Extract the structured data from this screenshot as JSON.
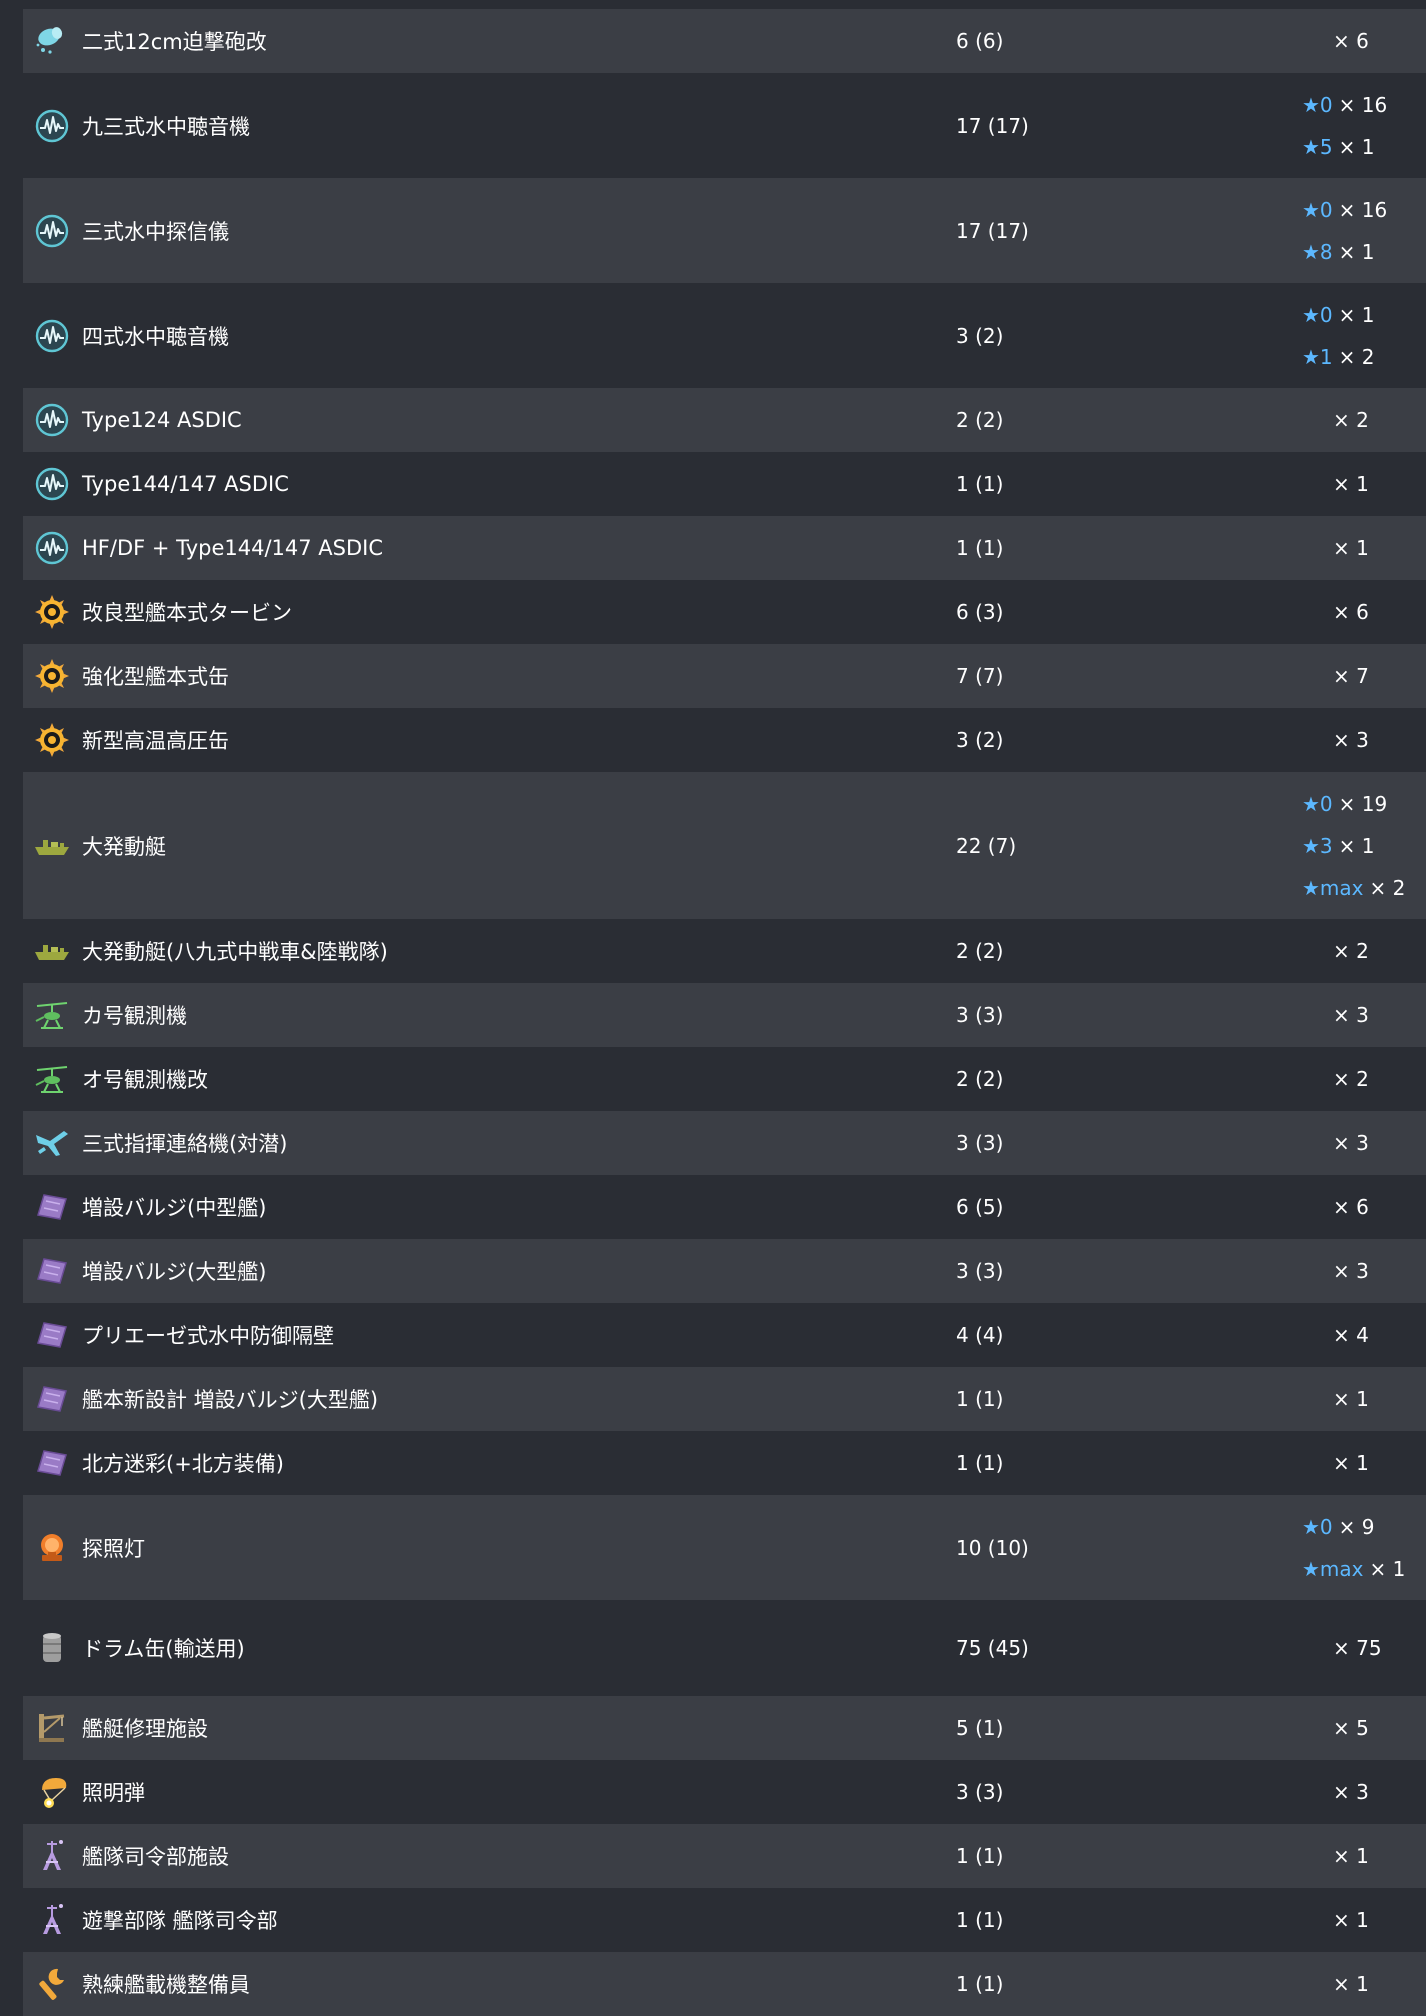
{
  "colors": {
    "row_odd": "#3b3e45",
    "row_even": "#2a2d34",
    "star": "#5cb8ff",
    "text": "#ffffff"
  },
  "rows": [
    {
      "icon": "mortar-icon",
      "name": "二式12cm迫撃砲改",
      "count": "6 (6)",
      "stars": [
        {
          "level": "",
          "count": "× 6"
        }
      ]
    },
    {
      "icon": "sonar-icon",
      "name": "九三式水中聴音機",
      "count": "17 (17)",
      "stars": [
        {
          "level": "★0",
          "count": "× 16"
        },
        {
          "level": "★5",
          "count": "× 1"
        }
      ]
    },
    {
      "icon": "sonar-icon",
      "name": "三式水中探信儀",
      "count": "17 (17)",
      "stars": [
        {
          "level": "★0",
          "count": "× 16"
        },
        {
          "level": "★8",
          "count": "× 1"
        }
      ]
    },
    {
      "icon": "sonar-icon",
      "name": "四式水中聴音機",
      "count": "3 (2)",
      "stars": [
        {
          "level": "★0",
          "count": "× 1"
        },
        {
          "level": "★1",
          "count": "× 2"
        }
      ]
    },
    {
      "icon": "sonar-icon",
      "name": "Type124 ASDIC",
      "count": "2 (2)",
      "stars": [
        {
          "level": "",
          "count": "× 2"
        }
      ]
    },
    {
      "icon": "sonar-icon",
      "name": "Type144/147 ASDIC",
      "count": "1 (1)",
      "stars": [
        {
          "level": "",
          "count": "× 1"
        }
      ]
    },
    {
      "icon": "sonar-icon",
      "name": "HF/DF + Type144/147 ASDIC",
      "count": "1 (1)",
      "stars": [
        {
          "level": "",
          "count": "× 1"
        }
      ]
    },
    {
      "icon": "turbine-icon",
      "name": "改良型艦本式タービン",
      "count": "6 (3)",
      "stars": [
        {
          "level": "",
          "count": "× 6"
        }
      ]
    },
    {
      "icon": "turbine-icon",
      "name": "強化型艦本式缶",
      "count": "7 (7)",
      "stars": [
        {
          "level": "",
          "count": "× 7"
        }
      ]
    },
    {
      "icon": "turbine-icon",
      "name": "新型高温高圧缶",
      "count": "3 (2)",
      "stars": [
        {
          "level": "",
          "count": "× 3"
        }
      ]
    },
    {
      "icon": "landing-craft-icon",
      "name": "大発動艇",
      "count": "22 (7)",
      "stars": [
        {
          "level": "★0",
          "count": "× 19"
        },
        {
          "level": "★3",
          "count": "× 1"
        },
        {
          "level": "★max",
          "count": "× 2"
        }
      ]
    },
    {
      "icon": "landing-craft-icon",
      "name": "大発動艇(八九式中戦車&陸戦隊)",
      "count": "2 (2)",
      "stars": [
        {
          "level": "",
          "count": "× 2"
        }
      ]
    },
    {
      "icon": "autogyro-icon",
      "name": "カ号観測機",
      "count": "3 (3)",
      "stars": [
        {
          "level": "",
          "count": "× 3"
        }
      ]
    },
    {
      "icon": "autogyro-icon",
      "name": "オ号観測機改",
      "count": "2 (2)",
      "stars": [
        {
          "level": "",
          "count": "× 2"
        }
      ]
    },
    {
      "icon": "liaison-plane-icon",
      "name": "三式指揮連絡機(対潜)",
      "count": "3 (3)",
      "stars": [
        {
          "level": "",
          "count": "× 3"
        }
      ]
    },
    {
      "icon": "bulge-icon",
      "name": "増設バルジ(中型艦)",
      "count": "6 (5)",
      "stars": [
        {
          "level": "",
          "count": "× 6"
        }
      ]
    },
    {
      "icon": "bulge-icon",
      "name": "増設バルジ(大型艦)",
      "count": "3 (3)",
      "stars": [
        {
          "level": "",
          "count": "× 3"
        }
      ]
    },
    {
      "icon": "bulge-icon",
      "name": "プリエーゼ式水中防御隔壁",
      "count": "4 (4)",
      "stars": [
        {
          "level": "",
          "count": "× 4"
        }
      ]
    },
    {
      "icon": "bulge-icon",
      "name": "艦本新設計 増設バルジ(大型艦)",
      "count": "1 (1)",
      "stars": [
        {
          "level": "",
          "count": "× 1"
        }
      ]
    },
    {
      "icon": "bulge-icon",
      "name": "北方迷彩(+北方装備)",
      "count": "1 (1)",
      "stars": [
        {
          "level": "",
          "count": "× 1"
        }
      ]
    },
    {
      "icon": "searchlight-icon",
      "name": "探照灯",
      "count": "10 (10)",
      "stars": [
        {
          "level": "★0",
          "count": "× 9"
        },
        {
          "level": "★max",
          "count": "× 1"
        }
      ]
    },
    {
      "icon": "drum-canister-icon",
      "name": "ドラム缶(輸送用)",
      "count": "75 (45)",
      "stars": [
        {
          "level": "",
          "count": "× 75"
        }
      ]
    },
    {
      "icon": "repair-facility-icon",
      "name": "艦艇修理施設",
      "count": "5 (1)",
      "stars": [
        {
          "level": "",
          "count": "× 5"
        }
      ]
    },
    {
      "icon": "star-shell-icon",
      "name": "照明弾",
      "count": "3 (3)",
      "stars": [
        {
          "level": "",
          "count": "× 3"
        }
      ]
    },
    {
      "icon": "command-facility-icon",
      "name": "艦隊司令部施設",
      "count": "1 (1)",
      "stars": [
        {
          "level": "",
          "count": "× 1"
        }
      ]
    },
    {
      "icon": "command-facility-icon",
      "name": "遊撃部隊 艦隊司令部",
      "count": "1 (1)",
      "stars": [
        {
          "level": "",
          "count": "× 1"
        }
      ]
    },
    {
      "icon": "wrench-icon",
      "name": "熟練艦載機整備員",
      "count": "1 (1)",
      "stars": [
        {
          "level": "",
          "count": "× 1"
        }
      ]
    }
  ]
}
